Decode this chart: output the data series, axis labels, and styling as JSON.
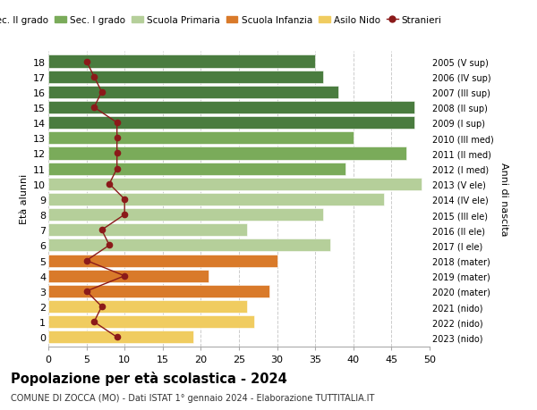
{
  "ages": [
    18,
    17,
    16,
    15,
    14,
    13,
    12,
    11,
    10,
    9,
    8,
    7,
    6,
    5,
    4,
    3,
    2,
    1,
    0
  ],
  "anni_nascita": [
    "2005 (V sup)",
    "2006 (IV sup)",
    "2007 (III sup)",
    "2008 (II sup)",
    "2009 (I sup)",
    "2010 (III med)",
    "2011 (II med)",
    "2012 (I med)",
    "2013 (V ele)",
    "2014 (IV ele)",
    "2015 (III ele)",
    "2016 (II ele)",
    "2017 (I ele)",
    "2018 (mater)",
    "2019 (mater)",
    "2020 (mater)",
    "2021 (nido)",
    "2022 (nido)",
    "2023 (nido)"
  ],
  "bar_values": [
    35,
    36,
    38,
    48,
    48,
    40,
    47,
    39,
    49,
    44,
    36,
    26,
    37,
    30,
    21,
    29,
    26,
    27,
    19
  ],
  "bar_colors": [
    "#4a7c3f",
    "#4a7c3f",
    "#4a7c3f",
    "#4a7c3f",
    "#4a7c3f",
    "#7aab5a",
    "#7aab5a",
    "#7aab5a",
    "#b5cf9a",
    "#b5cf9a",
    "#b5cf9a",
    "#b5cf9a",
    "#b5cf9a",
    "#d97a2a",
    "#d97a2a",
    "#d97a2a",
    "#f0cc60",
    "#f0cc60",
    "#f0cc60"
  ],
  "stranieri_values": [
    5,
    6,
    7,
    6,
    9,
    9,
    9,
    9,
    8,
    10,
    10,
    7,
    8,
    5,
    10,
    5,
    7,
    6,
    9
  ],
  "legend_labels": [
    "Sec. II grado",
    "Sec. I grado",
    "Scuola Primaria",
    "Scuola Infanzia",
    "Asilo Nido",
    "Stranieri"
  ],
  "legend_colors": [
    "#4a7c3f",
    "#7aab5a",
    "#b5cf9a",
    "#d97a2a",
    "#f0cc60",
    "#8b1a1a"
  ],
  "title": "Popolazione per età scolastica - 2024",
  "subtitle": "COMUNE DI ZOCCA (MO) - Dati ISTAT 1° gennaio 2024 - Elaborazione TUTTITALIA.IT",
  "ylabel": "Età alunni",
  "ylabel2": "Anni di nascita",
  "xlim": [
    0,
    50
  ],
  "xticks": [
    0,
    5,
    10,
    15,
    20,
    25,
    30,
    35,
    40,
    45,
    50
  ],
  "stranieri_color": "#8b1a1a",
  "background_color": "#ffffff",
  "grid_color": "#cccccc"
}
